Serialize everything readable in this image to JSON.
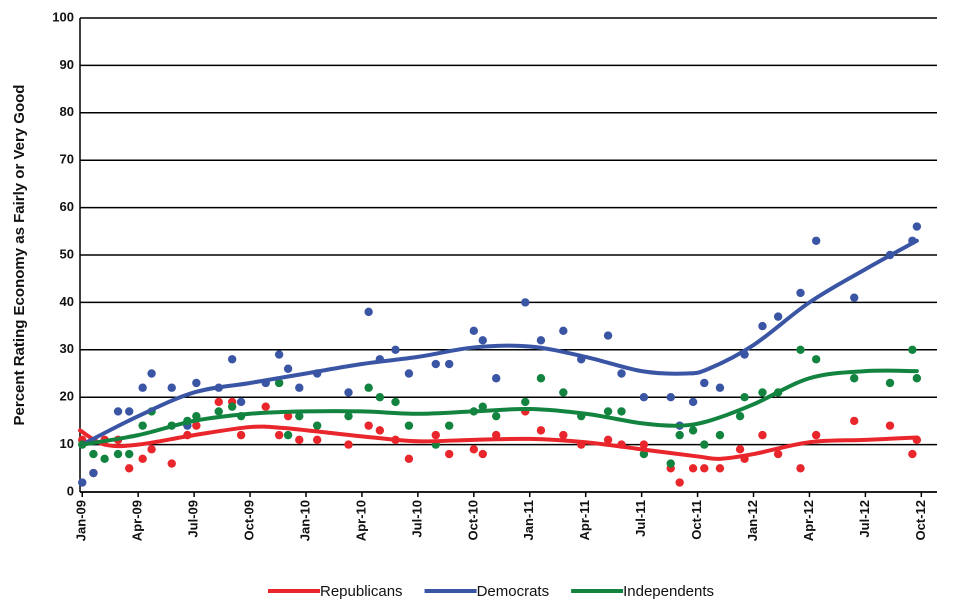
{
  "chart_data": {
    "type": "scatter",
    "y_label": "Percent Rating Economy as  Fairly or Very Good",
    "ylim": [
      0,
      100
    ],
    "yticks": [
      0,
      10,
      20,
      30,
      40,
      50,
      60,
      70,
      80,
      90,
      100
    ],
    "xlim": [
      2008.99,
      2012.82
    ],
    "xticks": [
      {
        "value": 2009.0,
        "label": "Jan-09"
      },
      {
        "value": 2009.25,
        "label": "Apr-09"
      },
      {
        "value": 2009.5,
        "label": "Jul-09"
      },
      {
        "value": 2009.75,
        "label": "Oct-09"
      },
      {
        "value": 2010.0,
        "label": "Jan-10"
      },
      {
        "value": 2010.25,
        "label": "Apr-10"
      },
      {
        "value": 2010.5,
        "label": "Jul-10"
      },
      {
        "value": 2010.75,
        "label": "Oct-10"
      },
      {
        "value": 2011.0,
        "label": "Jan-11"
      },
      {
        "value": 2011.25,
        "label": "Apr-11"
      },
      {
        "value": 2011.5,
        "label": "Jul-11"
      },
      {
        "value": 2011.75,
        "label": "Oct-11"
      },
      {
        "value": 2012.0,
        "label": "Jan-12"
      },
      {
        "value": 2012.25,
        "label": "Apr-12"
      },
      {
        "value": 2012.5,
        "label": "Jul-12"
      },
      {
        "value": 2012.75,
        "label": "Oct-12"
      }
    ],
    "grid": true,
    "series": [
      {
        "name": "Republicans",
        "color": "#e8262b",
        "x": [
          2009.0,
          2009.05,
          2009.1,
          2009.16,
          2009.21,
          2009.27,
          2009.31,
          2009.4,
          2009.47,
          2009.51,
          2009.61,
          2009.67,
          2009.71,
          2009.82,
          2009.88,
          2009.92,
          2009.97,
          2010.05,
          2010.19,
          2010.28,
          2010.33,
          2010.4,
          2010.46,
          2010.58,
          2010.64,
          2010.75,
          2010.79,
          2010.85,
          2010.98,
          2011.05,
          2011.15,
          2011.23,
          2011.35,
          2011.41,
          2011.51,
          2011.63,
          2011.67,
          2011.73,
          2011.78,
          2011.85,
          2011.94,
          2011.96,
          2012.04,
          2012.11,
          2012.21,
          2012.28,
          2012.45,
          2012.61,
          2012.71,
          2012.73
        ],
        "values": [
          11,
          4,
          11,
          11,
          5,
          7,
          9,
          6,
          12,
          14,
          19,
          19,
          12,
          18,
          12,
          16,
          11,
          11,
          10,
          14,
          13,
          11,
          7,
          12,
          8,
          9,
          8,
          12,
          17,
          13,
          12,
          10,
          11,
          10,
          10,
          5,
          2,
          5,
          5,
          5,
          9,
          7,
          12,
          8,
          5,
          12,
          15,
          14,
          8,
          11
        ],
        "trend_x": [
          2008.99,
          2009.1,
          2009.25,
          2009.5,
          2009.75,
          2009.9,
          2010.1,
          2010.3,
          2010.5,
          2010.75,
          2011.0,
          2011.25,
          2011.5,
          2011.75,
          2011.85,
          2012.0,
          2012.25,
          2012.5,
          2012.73
        ],
        "trend_values": [
          13,
          10,
          10,
          12,
          13.7,
          13.5,
          12.5,
          11.5,
          10.7,
          11,
          11.2,
          10.5,
          9,
          7.5,
          7,
          8,
          10.5,
          11,
          11.5
        ]
      },
      {
        "name": "Democrats",
        "color": "#3a55a4",
        "x": [
          2009.0,
          2009.05,
          2009.16,
          2009.21,
          2009.27,
          2009.31,
          2009.4,
          2009.47,
          2009.51,
          2009.61,
          2009.67,
          2009.71,
          2009.82,
          2009.88,
          2009.92,
          2009.97,
          2010.05,
          2010.19,
          2010.28,
          2010.33,
          2010.4,
          2010.46,
          2010.58,
          2010.64,
          2010.75,
          2010.79,
          2010.85,
          2010.98,
          2011.05,
          2011.15,
          2011.23,
          2011.35,
          2011.41,
          2011.51,
          2011.63,
          2011.67,
          2011.73,
          2011.78,
          2011.85,
          2011.96,
          2012.04,
          2012.11,
          2012.21,
          2012.28,
          2012.45,
          2012.61,
          2012.71,
          2012.73
        ],
        "values": [
          2,
          4,
          17,
          17,
          22,
          25,
          22,
          14,
          23,
          22,
          28,
          19,
          23,
          29,
          26,
          22,
          25,
          21,
          38,
          28,
          30,
          25,
          27,
          27,
          34,
          32,
          24,
          40,
          32,
          34,
          28,
          33,
          25,
          20,
          20,
          14,
          19,
          23,
          22,
          29,
          35,
          37,
          42,
          53,
          41,
          50,
          53,
          56
        ],
        "trend_x": [
          2009.0,
          2009.25,
          2009.5,
          2009.75,
          2010.0,
          2010.25,
          2010.5,
          2010.75,
          2011.0,
          2011.25,
          2011.5,
          2011.7,
          2011.8,
          2012.0,
          2012.25,
          2012.5,
          2012.73
        ],
        "trend_values": [
          10,
          16,
          21,
          23,
          25,
          27,
          28.5,
          30.5,
          30.7,
          28.5,
          25.5,
          25,
          26,
          31,
          40,
          47,
          53
        ]
      },
      {
        "name": "Independents",
        "color": "#13843f",
        "x": [
          2009.0,
          2009.05,
          2009.1,
          2009.16,
          2009.21,
          2009.27,
          2009.31,
          2009.4,
          2009.47,
          2009.51,
          2009.61,
          2009.67,
          2009.71,
          2009.88,
          2009.92,
          2009.97,
          2010.05,
          2010.19,
          2010.28,
          2010.33,
          2010.4,
          2010.46,
          2010.58,
          2010.64,
          2010.75,
          2010.79,
          2010.85,
          2010.98,
          2011.05,
          2011.15,
          2011.23,
          2011.35,
          2011.41,
          2011.51,
          2011.63,
          2011.67,
          2011.73,
          2011.78,
          2011.85,
          2011.94,
          2011.96,
          2012.04,
          2012.11,
          2012.21,
          2012.28,
          2012.45,
          2012.61,
          2012.71,
          2012.73
        ],
        "values": [
          10,
          8,
          7,
          8,
          8,
          14,
          17,
          14,
          15,
          16,
          17,
          18,
          16,
          23,
          12,
          16,
          14,
          16,
          22,
          20,
          19,
          14,
          10,
          14,
          17,
          18,
          16,
          19,
          24,
          21,
          16,
          17,
          17,
          8,
          6,
          12,
          13,
          10,
          12,
          16,
          20,
          21,
          21,
          30,
          28,
          24,
          23,
          30,
          24
        ],
        "trend_x": [
          2009.0,
          2009.25,
          2009.5,
          2009.75,
          2010.0,
          2010.25,
          2010.5,
          2010.75,
          2011.0,
          2011.25,
          2011.5,
          2011.67,
          2011.8,
          2012.0,
          2012.25,
          2012.5,
          2012.73
        ],
        "trend_values": [
          10,
          12,
          15,
          16.5,
          17,
          17,
          16.5,
          17,
          17.5,
          16.5,
          14.5,
          14,
          15,
          18.5,
          24,
          25.5,
          25.5
        ]
      }
    ]
  }
}
